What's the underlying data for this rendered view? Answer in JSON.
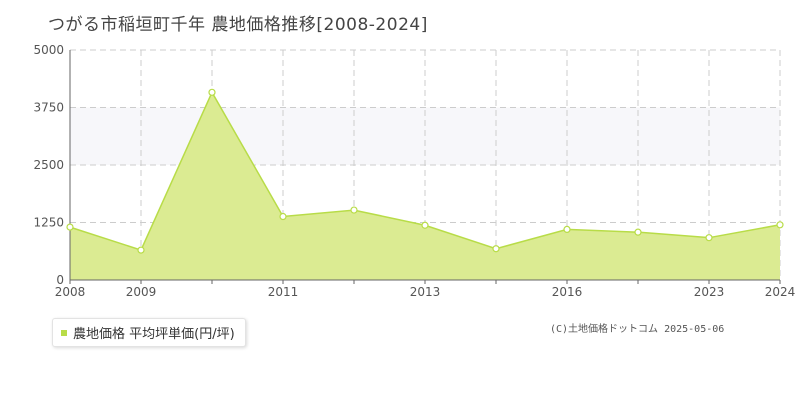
{
  "title": "つがる市稲垣町千年 農地価格推移[2008-2024]",
  "legend": {
    "label": "農地価格 平均坪単価(円/坪)"
  },
  "credit": "(C)土地価格ドットコム 2025-05-06",
  "chart_data": {
    "type": "area",
    "x": [
      2008,
      2009,
      2010,
      2011,
      2012,
      2013,
      2014,
      2016,
      2017,
      2023,
      2024
    ],
    "x_tick_labels": [
      "2008",
      "2009",
      "",
      "2011",
      "",
      "2013",
      "",
      "2016",
      "",
      "2023",
      "2024"
    ],
    "series": [
      {
        "name": "農地価格 平均坪単価(円/坪)",
        "values": [
          1150,
          650,
          4080,
          1380,
          1520,
          1190,
          680,
          1100,
          1040,
          920,
          1200
        ]
      }
    ],
    "ylim": [
      0,
      5000
    ],
    "yticks": [
      0,
      1250,
      2500,
      3750,
      5000
    ],
    "grid": true,
    "colors": {
      "fill": "#dbeb92",
      "line": "#b8dc48",
      "band": "#f7f7fa",
      "grid": "#cccccc"
    }
  }
}
